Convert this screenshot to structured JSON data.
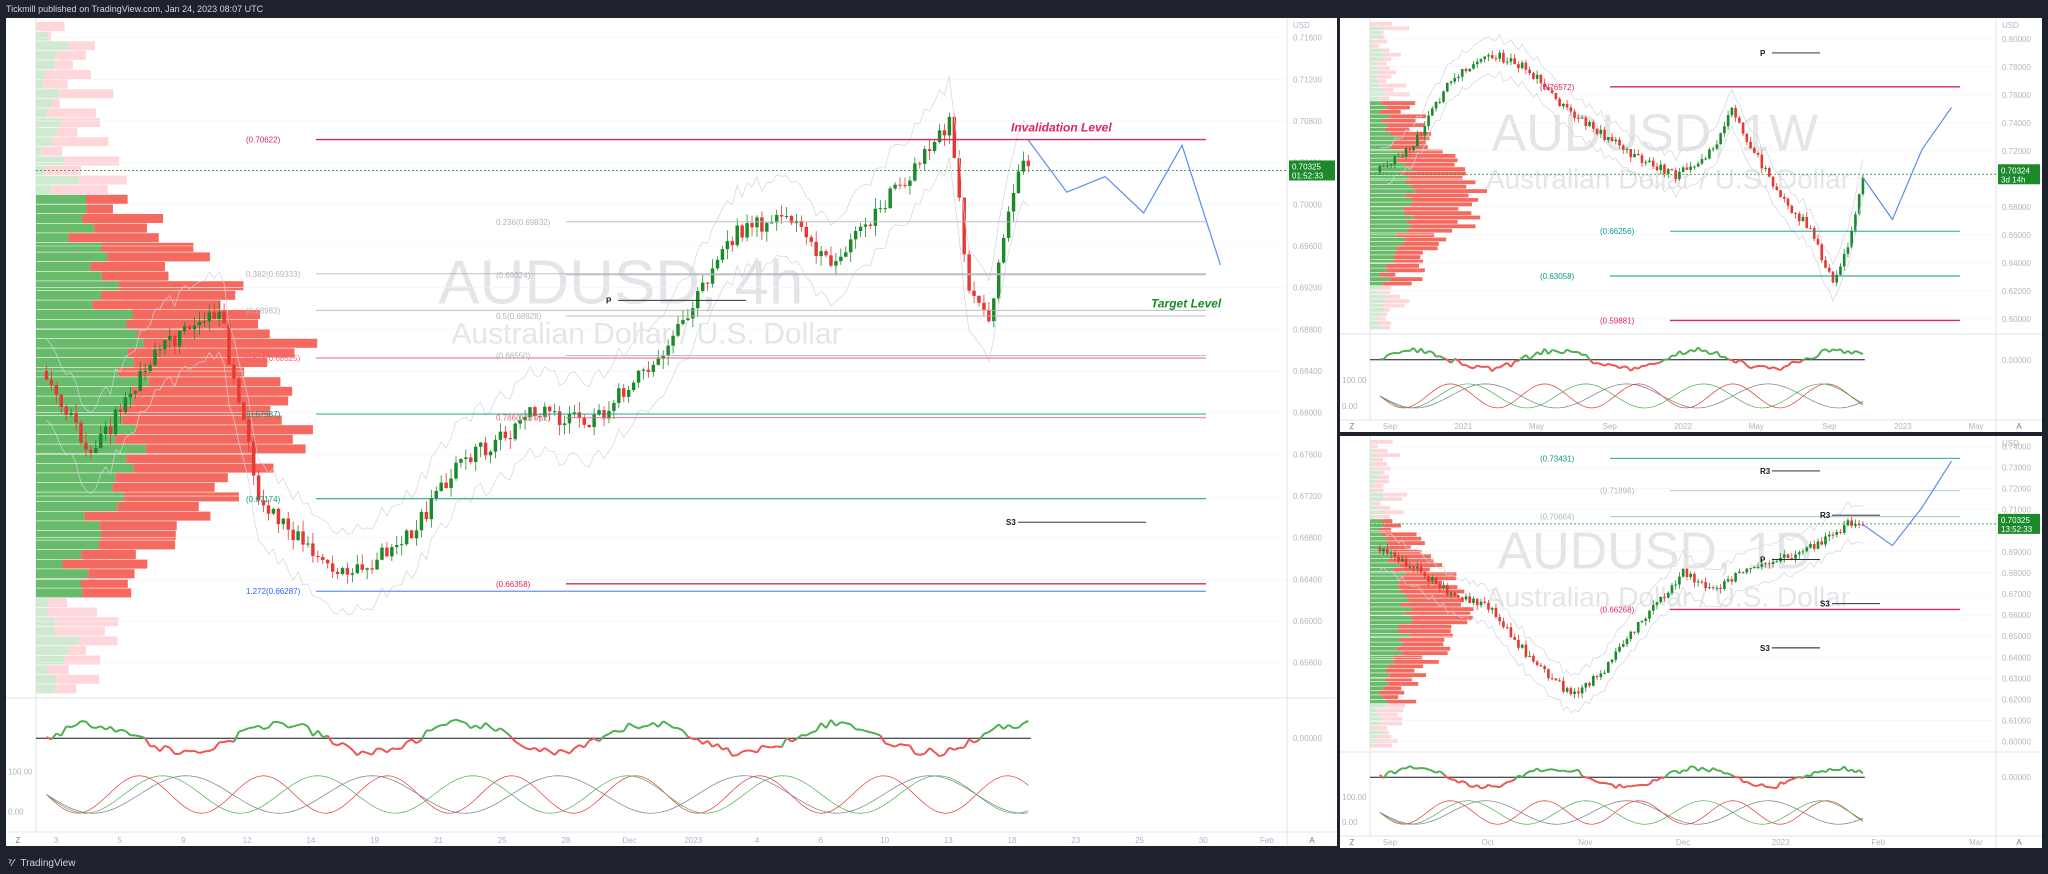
{
  "header": {
    "publisher": "Tickmill published on TradingView.com, Jan 24, 2023 08:07 UTC"
  },
  "footer": {
    "brand": "TradingView"
  },
  "chart_data": [
    {
      "type": "candlestick",
      "symbol": "AUDUSD",
      "timeframe": "4h",
      "description": "Australian Dollar / U.S. Dollar",
      "currency": "USD",
      "last_price": "0.70325",
      "countdown": "01:52:33",
      "annotations": [
        "Invalidation Level",
        "Target Level"
      ],
      "levels": [
        {
          "label": "(0.70622)",
          "value": 0.70622,
          "color": "#e0245e"
        },
        {
          "label": "0.236(0.69832)",
          "value": 0.69832,
          "color": "#b2b5be"
        },
        {
          "label": "0.382(0.69333)",
          "value": 0.69333,
          "color": "#b2b5be"
        },
        {
          "label": "(0.69324)",
          "value": 0.69324,
          "color": "#b2b5be"
        },
        {
          "label": "(0.68983)",
          "value": 0.68983,
          "color": "#b2b5be"
        },
        {
          "label": "0.5(0.68928)",
          "value": 0.68928,
          "color": "#b2b5be"
        },
        {
          "label": "0.618(0.68525)",
          "value": 0.68525,
          "color": "#f06080"
        },
        {
          "label": "(0.68550)",
          "value": 0.6855,
          "color": "#b2b5be"
        },
        {
          "label": "(0.67987)",
          "value": 0.67987,
          "color": "#089981"
        },
        {
          "label": "0.786(0.67952)",
          "value": 0.67952,
          "color": "#f06080"
        },
        {
          "label": "(0.67174)",
          "value": 0.67174,
          "color": "#089981"
        },
        {
          "label": "(0.66358)",
          "value": 0.66358,
          "color": "#e0245e"
        },
        {
          "label": "1.272(0.66287)",
          "value": 0.66287,
          "color": "#2962ff"
        }
      ],
      "pivot_labels": [
        "P",
        "S3"
      ],
      "y_ticks": [
        "USD",
        "0.71600",
        "0.71200",
        "0.70800",
        "0.70400",
        "0.70000",
        "0.69600",
        "0.69200",
        "0.68800",
        "0.68400",
        "0.68000",
        "0.67600",
        "0.67200",
        "0.66800",
        "0.66400",
        "0.66000",
        "0.65600"
      ],
      "x_ticks": [
        "3",
        "5",
        "9",
        "12",
        "14",
        "19",
        "21",
        "25",
        "28",
        "Dec",
        "2023",
        "4",
        "6",
        "10",
        "13",
        "18",
        "23",
        "25",
        "30",
        "Feb"
      ],
      "osc_ticks": [
        "0.00000",
        "100.00",
        "0.00"
      ]
    },
    {
      "type": "candlestick",
      "symbol": "AUDUSD",
      "timeframe": "1W",
      "description": "Australian Dollar / U.S. Dollar",
      "currency": "USD",
      "last_price": "0.70324",
      "countdown": "3d 14h",
      "levels": [
        {
          "label": "(0.76572)",
          "value": 0.76572,
          "color": "#e0245e"
        },
        {
          "label": "(0.66256)",
          "value": 0.66256,
          "color": "#089981"
        },
        {
          "label": "(0.63058)",
          "value": 0.63058,
          "color": "#089981"
        },
        {
          "label": "(0.59881)",
          "value": 0.59881,
          "color": "#e0245e"
        }
      ],
      "pivot_labels": [
        "P"
      ],
      "y_ticks": [
        "USD",
        "0.80000",
        "0.78000",
        "0.76000",
        "0.74000",
        "0.72000",
        "0.70000",
        "0.68000",
        "0.66000",
        "0.64000",
        "0.62000",
        "0.60000"
      ],
      "x_ticks": [
        "Sep",
        "2021",
        "May",
        "Sep",
        "2022",
        "May",
        "Sep",
        "2023",
        "May"
      ],
      "osc_ticks": [
        "0.00000",
        "100.00",
        "0.00"
      ]
    },
    {
      "type": "candlestick",
      "symbol": "AUDUSD",
      "timeframe": "1D",
      "description": "Australian Dollar / U.S. Dollar",
      "currency": "USD",
      "last_price": "0.70325",
      "countdown": "13:52:33",
      "levels": [
        {
          "label": "(0.73431)",
          "value": 0.73431,
          "color": "#089981"
        },
        {
          "label": "(0.71896)",
          "value": 0.71896,
          "color": "#b2b5be"
        },
        {
          "label": "(0.70664)",
          "value": 0.70664,
          "color": "#b2b5be"
        },
        {
          "label": "(0.66268)",
          "value": 0.66268,
          "color": "#e0245e"
        }
      ],
      "pivot_labels": [
        "R3",
        "R3",
        "P",
        "S3",
        "S3"
      ],
      "y_ticks": [
        "USD",
        "0.74000",
        "0.73000",
        "0.72000",
        "0.71000",
        "0.70000",
        "0.69000",
        "0.68000",
        "0.67000",
        "0.66000",
        "0.65000",
        "0.64000",
        "0.63000",
        "0.62000",
        "0.61000",
        "0.60000"
      ],
      "x_ticks": [
        "Sep",
        "Oct",
        "Nov",
        "Dec",
        "2023",
        "Feb",
        "Mar"
      ],
      "osc_ticks": [
        "0.00000",
        "100.00",
        "0.00"
      ]
    }
  ]
}
